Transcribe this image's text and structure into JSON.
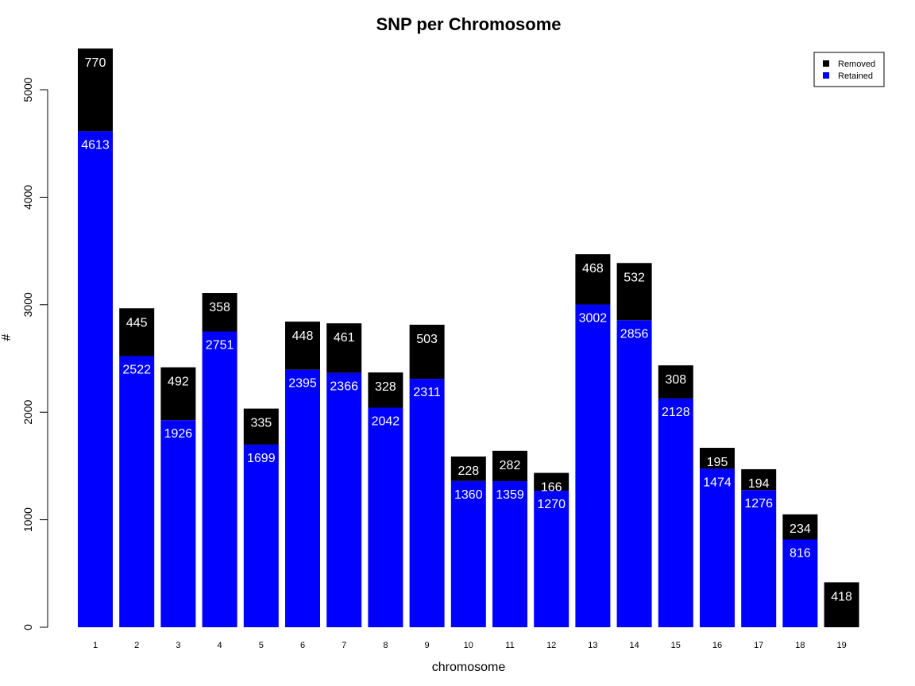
{
  "chart_data": {
    "type": "bar",
    "stacked": true,
    "title": "SNP per Chromosome",
    "xlabel": "chromosome",
    "ylabel": "#",
    "ylim": [
      0,
      5400
    ],
    "yticks": [
      0,
      1000,
      2000,
      3000,
      4000,
      5000
    ],
    "grid": false,
    "legend_position": "top-right",
    "categories": [
      "1",
      "2",
      "3",
      "4",
      "5",
      "6",
      "7",
      "8",
      "9",
      "10",
      "11",
      "12",
      "13",
      "14",
      "15",
      "16",
      "17",
      "18",
      "19"
    ],
    "series": [
      {
        "name": "Retained",
        "color": "#0000ff",
        "values": [
          4613,
          2522,
          1926,
          2751,
          1699,
          2395,
          2366,
          2042,
          2311,
          1360,
          1359,
          1270,
          3002,
          2856,
          2128,
          1474,
          1276,
          816,
          0
        ]
      },
      {
        "name": "Removed",
        "color": "#000000",
        "values": [
          770,
          445,
          492,
          358,
          335,
          448,
          461,
          328,
          503,
          228,
          282,
          166,
          468,
          532,
          308,
          195,
          194,
          234,
          418
        ]
      }
    ],
    "legend_order": [
      "Removed",
      "Retained"
    ]
  }
}
